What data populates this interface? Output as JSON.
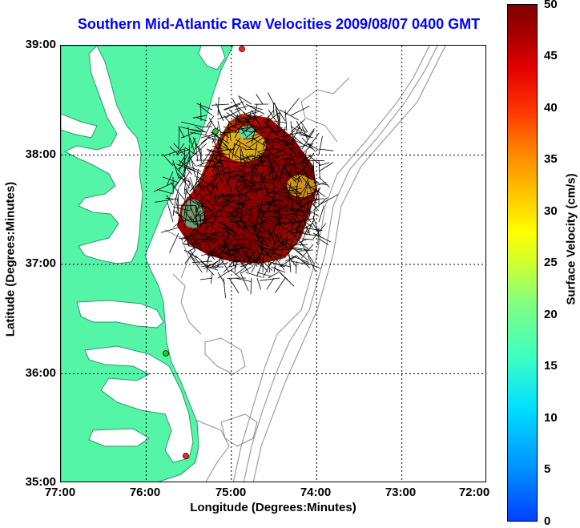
{
  "title": "Southern Mid-Atlantic Raw Velocities 2009/08/07 0400 GMT",
  "xaxis": {
    "label": "Longitude (Degrees:Minutes)",
    "ticks": [
      "77:00",
      "76:00",
      "75:00",
      "74:00",
      "73:00",
      "72:00"
    ]
  },
  "yaxis": {
    "label": "Latitude (Degrees:Minutes)",
    "ticks": [
      "39:00",
      "38:00",
      "37:00",
      "36:00",
      "35:00"
    ]
  },
  "colorbar": {
    "label": "Surface Velocity (cm/s)",
    "ticks": [
      "50",
      "45",
      "40",
      "35",
      "30",
      "25",
      "20",
      "15",
      "10",
      "5",
      "0"
    ],
    "range": [
      0,
      50
    ],
    "colormap": "jet"
  },
  "colors": {
    "land": "#55f5a8",
    "land_outline": "#2a9a66",
    "bathymetry": "#8c8c8c",
    "title": "#0000ff",
    "station_red": "#ff2020",
    "station_green": "#20d020"
  },
  "map": {
    "lon_range": [
      -77,
      -72
    ],
    "lat_range": [
      35,
      39
    ],
    "grid": true,
    "icons": [
      "hf-radar-station-icon",
      "velocity-arrow-icon"
    ]
  }
}
